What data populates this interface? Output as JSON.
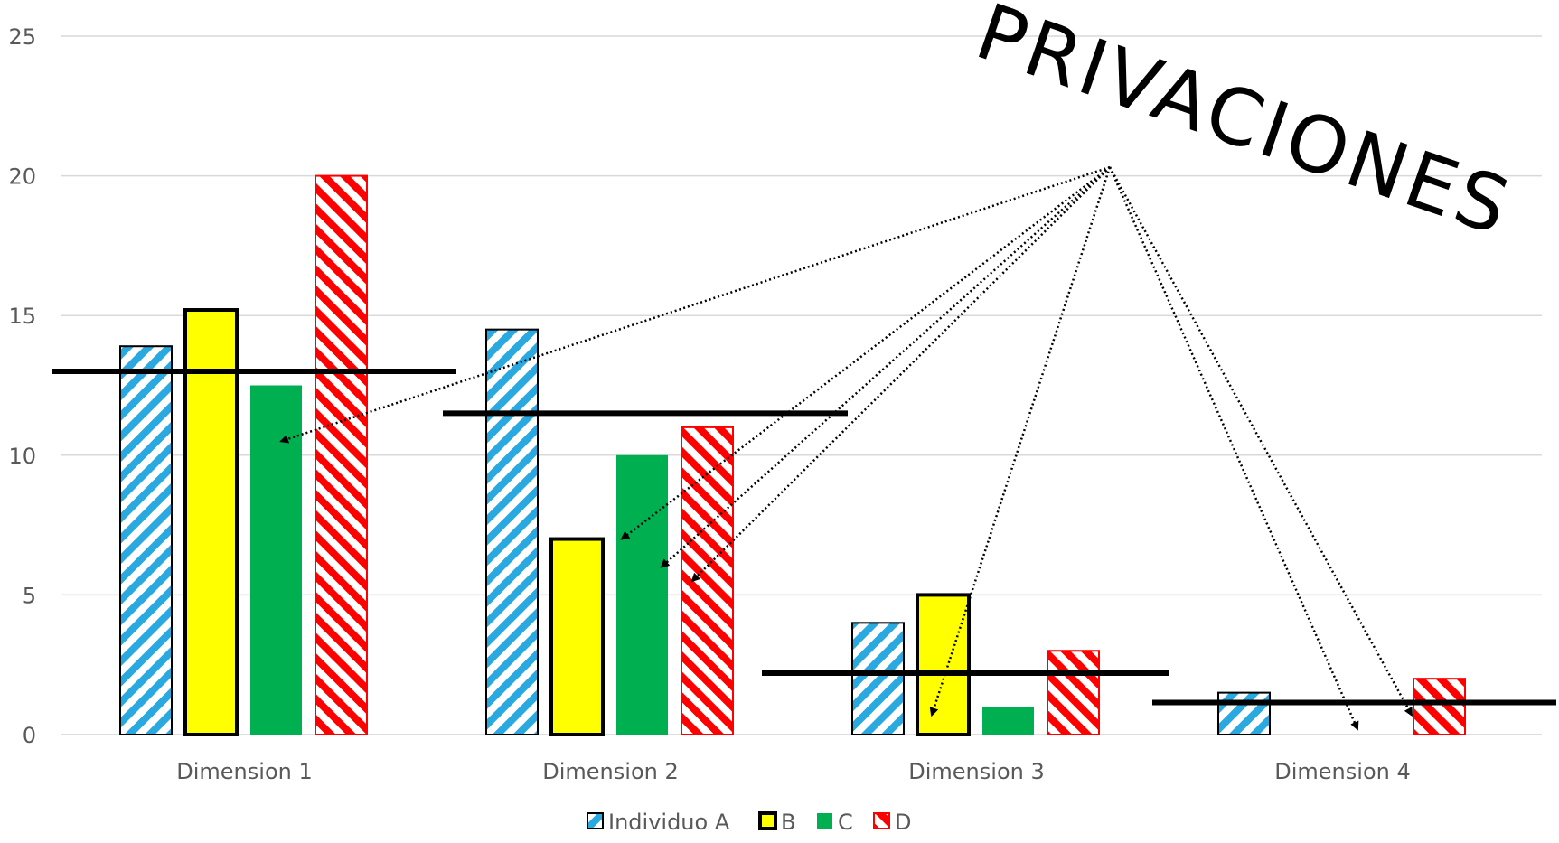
{
  "chart_data": {
    "type": "bar",
    "categories": [
      "Dimension 1",
      "Dimension 2",
      "Dimension 3",
      "Dimension 4"
    ],
    "series": [
      {
        "name": "Individuo A",
        "values": [
          13.9,
          14.5,
          4,
          1.5
        ],
        "color": "#2AA8E0",
        "pattern": "diagonal-stripes-down"
      },
      {
        "name": "B",
        "values": [
          15.2,
          7,
          5,
          0
        ],
        "color": "#FFFF00",
        "pattern": "solid-with-black-border"
      },
      {
        "name": "C",
        "values": [
          12.5,
          10,
          1,
          0
        ],
        "color": "#00B050",
        "pattern": "solid"
      },
      {
        "name": "D",
        "values": [
          20,
          11,
          3,
          2
        ],
        "color": "#FF0000",
        "pattern": "diagonal-stripes-up"
      }
    ],
    "thresholds": [
      13,
      11.5,
      2.2,
      1.15
    ],
    "ylim": [
      0,
      25
    ],
    "yticks": [
      0,
      5,
      10,
      15,
      20,
      25
    ],
    "grid": true,
    "legend": "bottom-center",
    "annotation": {
      "text": "PRIVACIONES",
      "arrow_targets": [
        {
          "category": "Dimension 1",
          "value": 10.5
        },
        {
          "category": "Dimension 2",
          "value": 7
        },
        {
          "category": "Dimension 2",
          "value": 6
        },
        {
          "category": "Dimension 2",
          "value": 5.5
        },
        {
          "category": "Dimension 3",
          "value": 0.7
        },
        {
          "category": "Dimension 4",
          "value": 0.2
        },
        {
          "category": "Dimension 4",
          "value": 0.7
        }
      ]
    }
  }
}
